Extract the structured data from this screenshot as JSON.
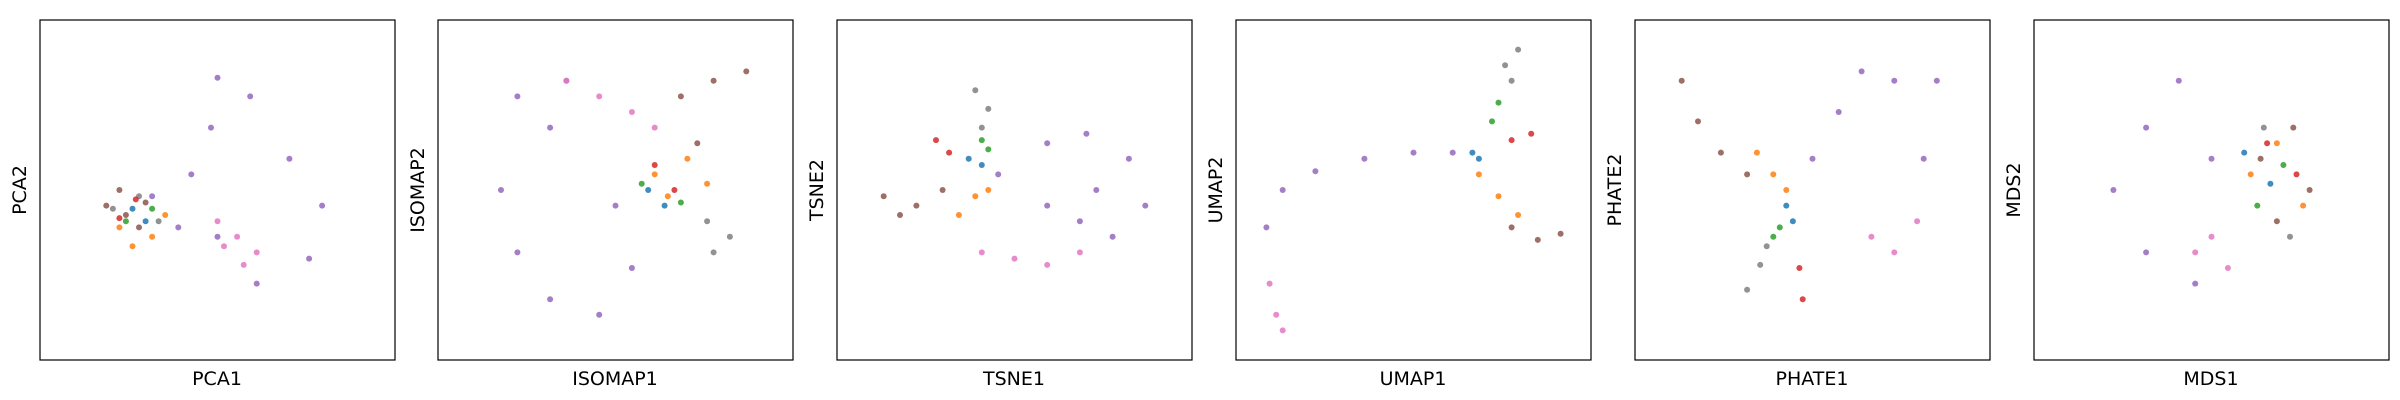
{
  "chart_data": [
    {
      "type": "scatter",
      "title": "",
      "xlabel": "PCA1",
      "ylabel": "PCA2",
      "xlim": [
        0,
        1
      ],
      "ylim": [
        0,
        1
      ],
      "grid": false,
      "series": [
        {
          "color": "#9467bd",
          "values": [
            [
              0.42,
              0.55
            ],
            [
              0.48,
              0.7
            ],
            [
              0.5,
              0.86
            ],
            [
              0.6,
              0.8
            ],
            [
              0.72,
              0.6
            ],
            [
              0.82,
              0.45
            ],
            [
              0.78,
              0.28
            ],
            [
              0.62,
              0.2
            ],
            [
              0.5,
              0.35
            ],
            [
              0.38,
              0.38
            ],
            [
              0.3,
              0.48
            ]
          ]
        },
        {
          "color": "#e377c2",
          "values": [
            [
              0.5,
              0.4
            ],
            [
              0.56,
              0.35
            ],
            [
              0.62,
              0.3
            ],
            [
              0.58,
              0.26
            ],
            [
              0.52,
              0.32
            ]
          ]
        },
        {
          "color": "#8c564b",
          "values": [
            [
              0.16,
              0.45
            ],
            [
              0.22,
              0.42
            ],
            [
              0.28,
              0.46
            ],
            [
              0.2,
              0.5
            ],
            [
              0.26,
              0.38
            ]
          ]
        },
        {
          "color": "#ff7f0e",
          "values": [
            [
              0.2,
              0.38
            ],
            [
              0.3,
              0.35
            ],
            [
              0.34,
              0.42
            ],
            [
              0.24,
              0.32
            ]
          ]
        },
        {
          "color": "#7f7f7f",
          "values": [
            [
              0.18,
              0.44
            ],
            [
              0.26,
              0.48
            ],
            [
              0.32,
              0.4
            ]
          ]
        },
        {
          "color": "#1f77b4",
          "values": [
            [
              0.24,
              0.44
            ],
            [
              0.28,
              0.4
            ]
          ]
        },
        {
          "color": "#2ca02c",
          "values": [
            [
              0.22,
              0.4
            ],
            [
              0.3,
              0.44
            ]
          ]
        },
        {
          "color": "#d62728",
          "values": [
            [
              0.25,
              0.47
            ],
            [
              0.2,
              0.41
            ]
          ]
        }
      ]
    },
    {
      "type": "scatter",
      "title": "",
      "xlabel": "ISOMAP1",
      "ylabel": "ISOMAP2",
      "xlim": [
        0,
        1
      ],
      "ylim": [
        0,
        1
      ],
      "grid": false,
      "series": [
        {
          "color": "#9467bd",
          "values": [
            [
              0.15,
              0.5
            ],
            [
              0.2,
              0.3
            ],
            [
              0.3,
              0.15
            ],
            [
              0.45,
              0.1
            ],
            [
              0.55,
              0.25
            ],
            [
              0.5,
              0.45
            ],
            [
              0.3,
              0.7
            ],
            [
              0.2,
              0.8
            ],
            [
              0.35,
              0.85
            ]
          ]
        },
        {
          "color": "#e377c2",
          "values": [
            [
              0.35,
              0.85
            ],
            [
              0.45,
              0.8
            ],
            [
              0.55,
              0.75
            ],
            [
              0.62,
              0.7
            ]
          ]
        },
        {
          "color": "#8c564b",
          "values": [
            [
              0.7,
              0.8
            ],
            [
              0.8,
              0.85
            ],
            [
              0.9,
              0.88
            ],
            [
              0.75,
              0.65
            ]
          ]
        },
        {
          "color": "#ff7f0e",
          "values": [
            [
              0.62,
              0.55
            ],
            [
              0.72,
              0.6
            ],
            [
              0.78,
              0.52
            ],
            [
              0.66,
              0.48
            ]
          ]
        },
        {
          "color": "#7f7f7f",
          "values": [
            [
              0.78,
              0.4
            ],
            [
              0.85,
              0.35
            ],
            [
              0.8,
              0.3
            ]
          ]
        },
        {
          "color": "#1f77b4",
          "values": [
            [
              0.6,
              0.5
            ],
            [
              0.65,
              0.45
            ]
          ]
        },
        {
          "color": "#2ca02c",
          "values": [
            [
              0.58,
              0.52
            ],
            [
              0.7,
              0.46
            ]
          ]
        },
        {
          "color": "#d62728",
          "values": [
            [
              0.62,
              0.58
            ],
            [
              0.68,
              0.5
            ]
          ]
        }
      ]
    },
    {
      "type": "scatter",
      "title": "",
      "xlabel": "TSNE1",
      "ylabel": "TSNE2",
      "xlim": [
        0,
        1
      ],
      "ylim": [
        0,
        1
      ],
      "grid": false,
      "series": [
        {
          "color": "#9467bd",
          "values": [
            [
              0.45,
              0.55
            ],
            [
              0.6,
              0.65
            ],
            [
              0.72,
              0.68
            ],
            [
              0.85,
              0.6
            ],
            [
              0.9,
              0.45
            ],
            [
              0.8,
              0.35
            ],
            [
              0.7,
              0.4
            ],
            [
              0.75,
              0.5
            ],
            [
              0.6,
              0.45
            ]
          ]
        },
        {
          "color": "#e377c2",
          "values": [
            [
              0.4,
              0.3
            ],
            [
              0.5,
              0.28
            ],
            [
              0.6,
              0.26
            ],
            [
              0.7,
              0.3
            ]
          ]
        },
        {
          "color": "#8c564b",
          "values": [
            [
              0.1,
              0.48
            ],
            [
              0.15,
              0.42
            ],
            [
              0.2,
              0.45
            ],
            [
              0.28,
              0.5
            ]
          ]
        },
        {
          "color": "#ff7f0e",
          "values": [
            [
              0.33,
              0.42
            ],
            [
              0.38,
              0.48
            ],
            [
              0.42,
              0.5
            ]
          ]
        },
        {
          "color": "#7f7f7f",
          "values": [
            [
              0.38,
              0.82
            ],
            [
              0.42,
              0.76
            ],
            [
              0.4,
              0.7
            ]
          ]
        },
        {
          "color": "#1f77b4",
          "values": [
            [
              0.36,
              0.6
            ],
            [
              0.4,
              0.58
            ]
          ]
        },
        {
          "color": "#2ca02c",
          "values": [
            [
              0.4,
              0.66
            ],
            [
              0.42,
              0.63
            ]
          ]
        },
        {
          "color": "#d62728",
          "values": [
            [
              0.26,
              0.66
            ],
            [
              0.3,
              0.62
            ]
          ]
        }
      ]
    },
    {
      "type": "scatter",
      "title": "",
      "xlabel": "UMAP1",
      "ylabel": "UMAP2",
      "xlim": [
        0,
        1
      ],
      "ylim": [
        0,
        1
      ],
      "grid": false,
      "series": [
        {
          "color": "#9467bd",
          "values": [
            [
              0.05,
              0.38
            ],
            [
              0.1,
              0.5
            ],
            [
              0.2,
              0.56
            ],
            [
              0.35,
              0.6
            ],
            [
              0.5,
              0.62
            ],
            [
              0.62,
              0.62
            ]
          ]
        },
        {
          "color": "#e377c2",
          "values": [
            [
              0.06,
              0.2
            ],
            [
              0.08,
              0.1
            ],
            [
              0.1,
              0.05
            ]
          ]
        },
        {
          "color": "#8c564b",
          "values": [
            [
              0.8,
              0.38
            ],
            [
              0.88,
              0.34
            ],
            [
              0.95,
              0.36
            ]
          ]
        },
        {
          "color": "#ff7f0e",
          "values": [
            [
              0.7,
              0.55
            ],
            [
              0.76,
              0.48
            ],
            [
              0.82,
              0.42
            ]
          ]
        },
        {
          "color": "#7f7f7f",
          "values": [
            [
              0.78,
              0.9
            ],
            [
              0.8,
              0.85
            ],
            [
              0.82,
              0.95
            ]
          ]
        },
        {
          "color": "#1f77b4",
          "values": [
            [
              0.68,
              0.62
            ],
            [
              0.7,
              0.6
            ]
          ]
        },
        {
          "color": "#2ca02c",
          "values": [
            [
              0.74,
              0.72
            ],
            [
              0.76,
              0.78
            ]
          ]
        },
        {
          "color": "#d62728",
          "values": [
            [
              0.8,
              0.66
            ],
            [
              0.86,
              0.68
            ]
          ]
        }
      ]
    },
    {
      "type": "scatter",
      "title": "",
      "xlabel": "PHATE1",
      "ylabel": "PHATE2",
      "xlim": [
        0,
        1
      ],
      "ylim": [
        0,
        1
      ],
      "grid": false,
      "series": [
        {
          "color": "#9467bd",
          "values": [
            [
              0.5,
              0.6
            ],
            [
              0.58,
              0.75
            ],
            [
              0.65,
              0.88
            ],
            [
              0.75,
              0.85
            ],
            [
              0.88,
              0.85
            ],
            [
              0.84,
              0.6
            ]
          ]
        },
        {
          "color": "#e377c2",
          "values": [
            [
              0.68,
              0.35
            ],
            [
              0.75,
              0.3
            ],
            [
              0.82,
              0.4
            ]
          ]
        },
        {
          "color": "#8c564b",
          "values": [
            [
              0.1,
              0.85
            ],
            [
              0.15,
              0.72
            ],
            [
              0.22,
              0.62
            ],
            [
              0.3,
              0.55
            ]
          ]
        },
        {
          "color": "#ff7f0e",
          "values": [
            [
              0.33,
              0.62
            ],
            [
              0.38,
              0.55
            ],
            [
              0.42,
              0.5
            ]
          ]
        },
        {
          "color": "#7f7f7f",
          "values": [
            [
              0.3,
              0.18
            ],
            [
              0.34,
              0.26
            ],
            [
              0.36,
              0.32
            ]
          ]
        },
        {
          "color": "#1f77b4",
          "values": [
            [
              0.42,
              0.45
            ],
            [
              0.44,
              0.4
            ]
          ]
        },
        {
          "color": "#2ca02c",
          "values": [
            [
              0.38,
              0.35
            ],
            [
              0.4,
              0.38
            ]
          ]
        },
        {
          "color": "#d62728",
          "values": [
            [
              0.46,
              0.25
            ],
            [
              0.47,
              0.15
            ]
          ]
        }
      ]
    },
    {
      "type": "scatter",
      "title": "",
      "xlabel": "MDS1",
      "ylabel": "MDS2",
      "xlim": [
        0,
        1
      ],
      "ylim": [
        0,
        1
      ],
      "grid": false,
      "series": [
        {
          "color": "#9467bd",
          "values": [
            [
              0.2,
              0.5
            ],
            [
              0.3,
              0.7
            ],
            [
              0.4,
              0.85
            ],
            [
              0.5,
              0.6
            ],
            [
              0.3,
              0.3
            ],
            [
              0.45,
              0.2
            ]
          ]
        },
        {
          "color": "#e377c2",
          "values": [
            [
              0.45,
              0.3
            ],
            [
              0.55,
              0.25
            ],
            [
              0.5,
              0.35
            ]
          ]
        },
        {
          "color": "#8c564b",
          "values": [
            [
              0.65,
              0.6
            ],
            [
              0.75,
              0.7
            ],
            [
              0.8,
              0.5
            ],
            [
              0.7,
              0.4
            ]
          ]
        },
        {
          "color": "#ff7f0e",
          "values": [
            [
              0.62,
              0.55
            ],
            [
              0.7,
              0.65
            ],
            [
              0.78,
              0.45
            ]
          ]
        },
        {
          "color": "#7f7f7f",
          "values": [
            [
              0.66,
              0.7
            ],
            [
              0.74,
              0.35
            ]
          ]
        },
        {
          "color": "#1f77b4",
          "values": [
            [
              0.6,
              0.62
            ],
            [
              0.68,
              0.52
            ]
          ]
        },
        {
          "color": "#2ca02c",
          "values": [
            [
              0.64,
              0.45
            ],
            [
              0.72,
              0.58
            ]
          ]
        },
        {
          "color": "#d62728",
          "values": [
            [
              0.67,
              0.65
            ],
            [
              0.76,
              0.55
            ]
          ]
        }
      ]
    }
  ]
}
